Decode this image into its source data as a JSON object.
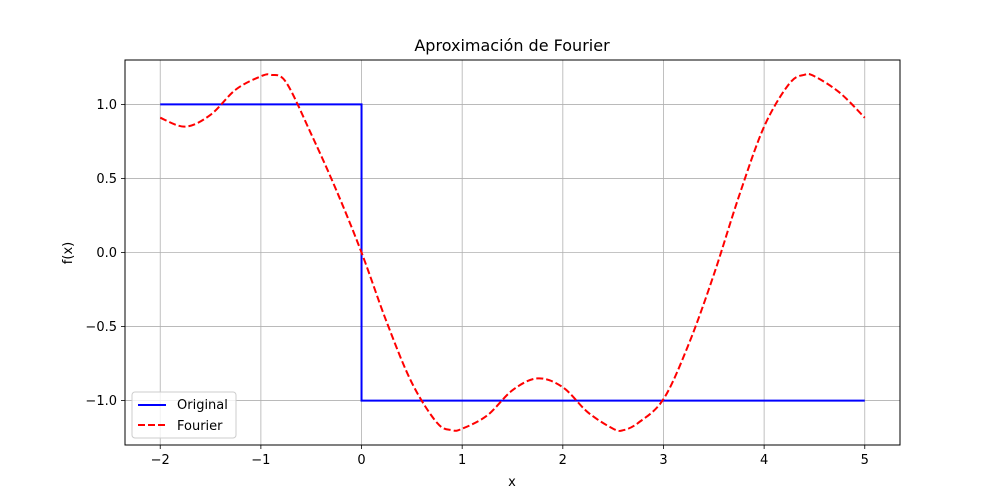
{
  "chart_data": {
    "type": "line",
    "title": "Aproximación de Fourier",
    "xlabel": "x",
    "ylabel": "f(x)",
    "xlim": [
      -2.35,
      5.35
    ],
    "ylim": [
      -1.3,
      1.3
    ],
    "x_ticks": [
      -2,
      -1,
      0,
      1,
      2,
      3,
      4,
      5
    ],
    "x_tick_labels": [
      "−2",
      "−1",
      "0",
      "1",
      "2",
      "3",
      "4",
      "5"
    ],
    "y_ticks": [
      1.0,
      0.5,
      0.0,
      -0.5,
      -1.0
    ],
    "y_tick_labels": [
      "1.0",
      "0.5",
      "0.0",
      "−0.5",
      "−1.0"
    ],
    "grid": true,
    "legend_position": "lower-left",
    "series": [
      {
        "name": "Original",
        "color": "#0000ff",
        "style": "solid",
        "x": [
          -2,
          0,
          0,
          5
        ],
        "y": [
          1,
          1,
          -1,
          -1
        ]
      },
      {
        "name": "Fourier",
        "color": "#ff0000",
        "style": "dashed",
        "x": [
          -2.0,
          -1.75,
          -1.5,
          -1.25,
          -1.0,
          -0.9,
          -0.75,
          -0.5,
          -0.25,
          0.0,
          0.25,
          0.5,
          0.75,
          0.9,
          1.0,
          1.25,
          1.5,
          1.75,
          2.0,
          2.25,
          2.5,
          2.6,
          2.75,
          3.0,
          3.25,
          3.5,
          3.75,
          4.0,
          4.25,
          4.4,
          4.5,
          4.75,
          5.0
        ],
        "y": [
          0.91,
          0.85,
          0.93,
          1.1,
          1.19,
          1.2,
          1.15,
          0.8,
          0.42,
          0.0,
          -0.47,
          -0.88,
          -1.15,
          -1.2,
          -1.19,
          -1.1,
          -0.93,
          -0.85,
          -0.91,
          -1.08,
          -1.19,
          -1.2,
          -1.15,
          -0.99,
          -0.62,
          -0.15,
          0.38,
          0.85,
          1.14,
          1.2,
          1.19,
          1.08,
          0.91
        ]
      }
    ]
  }
}
